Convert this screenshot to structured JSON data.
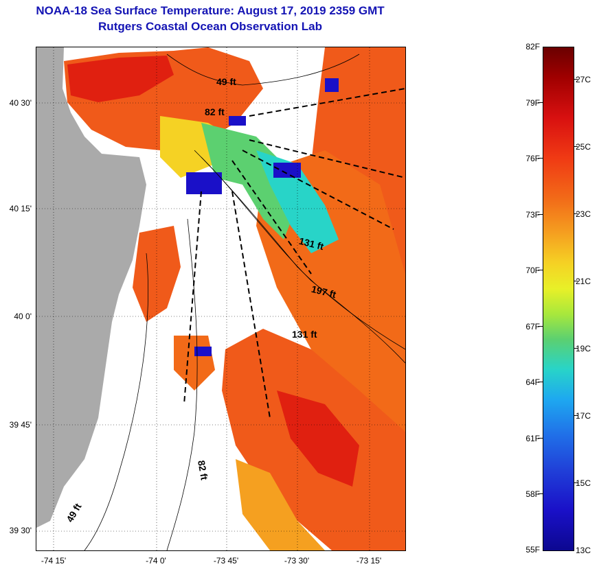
{
  "title": {
    "line1": "NOAA-18 Sea Surface Temperature:  August 17, 2019 2359 GMT",
    "line2": "Rutgers Coastal Ocean Observation Lab"
  },
  "map": {
    "lat_labels": [
      "40 30'",
      "40 15'",
      "40 0'",
      "39 45'",
      "39 30'"
    ],
    "lon_labels": [
      "-74 15'",
      "-74 0'",
      "-73 45'",
      "-73 30'",
      "-73 15'"
    ],
    "depth_labels": [
      "49 ft",
      "82 ft",
      "131 ft",
      "197 ft",
      "131 ft",
      "82 ft",
      "49 ft"
    ],
    "colors": {
      "land": "#aaaaaa",
      "no_data": "#ffffff",
      "warm": "#f05a1a",
      "hot": "#e02010",
      "mid": "#f5a020",
      "cool": "#1ea8f0",
      "cold": "#1a10c8"
    }
  },
  "colorbar": {
    "fahrenheit": [
      "82F",
      "79F",
      "76F",
      "73F",
      "70F",
      "67F",
      "64F",
      "61F",
      "58F",
      "55F"
    ],
    "celsius": [
      "27C",
      "25C",
      "23C",
      "21C",
      "19C",
      "17C",
      "15C",
      "13C"
    ]
  }
}
